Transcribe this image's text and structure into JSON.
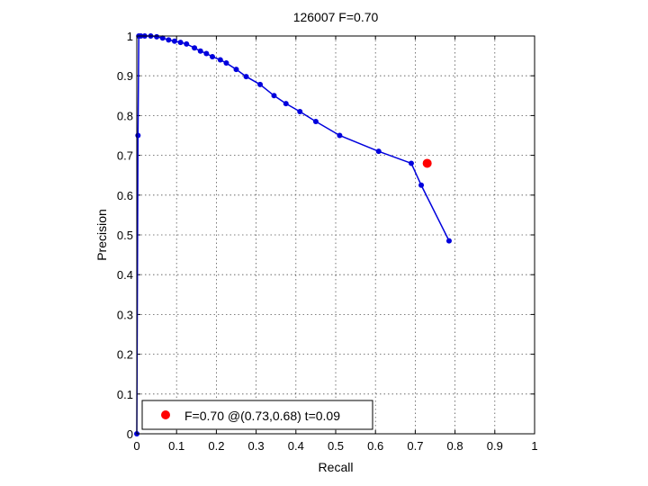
{
  "chart_data": {
    "type": "line",
    "title": "126007 F=0.70",
    "xlabel": "Recall",
    "ylabel": "Precision",
    "xlim": [
      0,
      1
    ],
    "ylim": [
      0,
      1
    ],
    "grid": true,
    "x_ticks": [
      "0",
      "0.1",
      "0.2",
      "0.3",
      "0.4",
      "0.5",
      "0.6",
      "0.7",
      "0.8",
      "0.9",
      "1"
    ],
    "y_ticks": [
      "0",
      "0.1",
      "0.2",
      "0.3",
      "0.4",
      "0.5",
      "0.6",
      "0.7",
      "0.8",
      "0.9",
      "1"
    ],
    "series": [
      {
        "color": "#0000dd",
        "marker": "dot",
        "points": [
          [
            0.0,
            0.0
          ],
          [
            0.003,
            0.75
          ],
          [
            0.005,
            1.0
          ],
          [
            0.01,
            1.0
          ],
          [
            0.02,
            1.0
          ],
          [
            0.035,
            1.0
          ],
          [
            0.05,
            0.998
          ],
          [
            0.065,
            0.995
          ],
          [
            0.08,
            0.99
          ],
          [
            0.095,
            0.987
          ],
          [
            0.11,
            0.984
          ],
          [
            0.125,
            0.98
          ],
          [
            0.145,
            0.97
          ],
          [
            0.16,
            0.962
          ],
          [
            0.175,
            0.956
          ],
          [
            0.19,
            0.948
          ],
          [
            0.21,
            0.94
          ],
          [
            0.225,
            0.932
          ],
          [
            0.25,
            0.916
          ],
          [
            0.275,
            0.898
          ],
          [
            0.31,
            0.878
          ],
          [
            0.345,
            0.85
          ],
          [
            0.375,
            0.83
          ],
          [
            0.41,
            0.81
          ],
          [
            0.45,
            0.785
          ],
          [
            0.51,
            0.75
          ],
          [
            0.608,
            0.71
          ],
          [
            0.69,
            0.68
          ],
          [
            0.715,
            0.625
          ],
          [
            0.785,
            0.485
          ]
        ]
      }
    ],
    "highlight": {
      "x": 0.73,
      "y": 0.68,
      "color": "#ff0000"
    },
    "legend": {
      "position": "bottom-left",
      "text": "F=0.70 @(0.73,0.68) t=0.09"
    }
  }
}
